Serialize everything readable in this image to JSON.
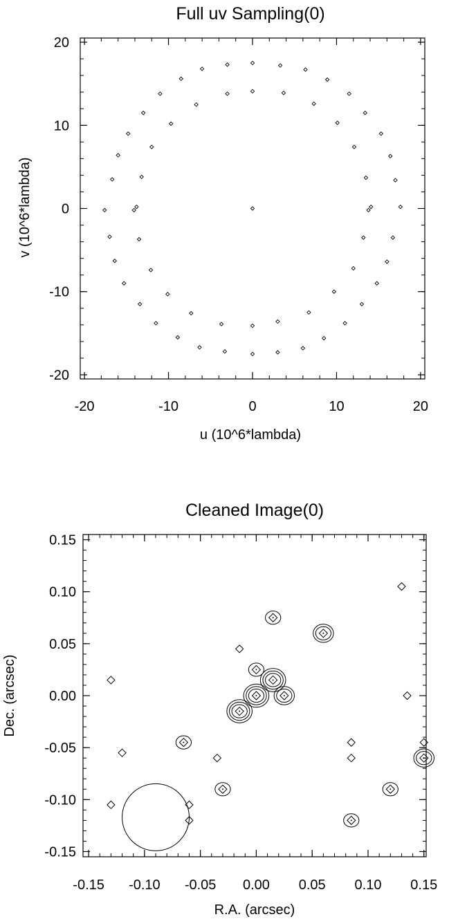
{
  "chart_data": [
    {
      "type": "scatter",
      "title": "Full uv Sampling(0)",
      "xlabel": "u (10^6*lambda)",
      "ylabel": "v (10^6*lambda)",
      "xlim": [
        -20.5,
        20.5
      ],
      "ylim": [
        -20.5,
        20.5
      ],
      "xticks": [
        -20,
        -10,
        0,
        10,
        20
      ],
      "yticks": [
        -20,
        -10,
        0,
        10,
        20
      ],
      "xtick_labels": [
        "-20",
        "-10",
        "0",
        "10",
        "20"
      ],
      "ytick_labels": [
        "-20",
        "-10",
        "0",
        "10",
        "20"
      ],
      "marker": "diamond",
      "grid": false,
      "points": [
        [
          0,
          0
        ],
        [
          0,
          17.5
        ],
        [
          3.3,
          17.2
        ],
        [
          6.3,
          16.7
        ],
        [
          8.9,
          15.5
        ],
        [
          11.5,
          13.8
        ],
        [
          13.4,
          11.5
        ],
        [
          15.3,
          9.0
        ],
        [
          16.4,
          6.3
        ],
        [
          17.0,
          3.4
        ],
        [
          17.6,
          0.2
        ],
        [
          0,
          -17.5
        ],
        [
          -3.3,
          -17.2
        ],
        [
          -6.3,
          -16.7
        ],
        [
          -8.9,
          -15.5
        ],
        [
          -11.5,
          -13.8
        ],
        [
          -13.4,
          -11.5
        ],
        [
          -15.3,
          -9.0
        ],
        [
          -16.4,
          -6.3
        ],
        [
          -17.0,
          -3.4
        ],
        [
          -17.6,
          -0.2
        ],
        [
          0,
          14.1
        ],
        [
          3.7,
          13.9
        ],
        [
          7.3,
          12.6
        ],
        [
          10.1,
          10.3
        ],
        [
          12.1,
          7.4
        ],
        [
          13.5,
          3.7
        ],
        [
          14.1,
          0.2
        ],
        [
          0,
          -14.1
        ],
        [
          -3.7,
          -13.9
        ],
        [
          -7.3,
          -12.6
        ],
        [
          -10.1,
          -10.3
        ],
        [
          -12.1,
          -7.4
        ],
        [
          -13.5,
          -3.7
        ],
        [
          -14.1,
          -0.2
        ],
        [
          -3.0,
          17.3
        ],
        [
          -6.0,
          16.8
        ],
        [
          -8.5,
          15.6
        ],
        [
          -11.0,
          13.8
        ],
        [
          -13.0,
          11.5
        ],
        [
          -14.8,
          9.0
        ],
        [
          -16.0,
          6.4
        ],
        [
          -16.7,
          3.5
        ],
        [
          3.0,
          -17.3
        ],
        [
          6.0,
          -16.8
        ],
        [
          8.5,
          -15.6
        ],
        [
          11.0,
          -13.8
        ],
        [
          13.0,
          -11.5
        ],
        [
          14.8,
          -9.0
        ],
        [
          16.0,
          -6.4
        ],
        [
          16.7,
          -3.5
        ],
        [
          -3.0,
          13.8
        ],
        [
          -6.7,
          12.5
        ],
        [
          -9.7,
          10.2
        ],
        [
          -12.0,
          7.4
        ],
        [
          -13.2,
          3.8
        ],
        [
          -13.8,
          0.2
        ],
        [
          3.0,
          -13.6
        ],
        [
          6.7,
          -12.5
        ],
        [
          9.7,
          -10.0
        ],
        [
          12.0,
          -7.2
        ],
        [
          13.2,
          -3.5
        ],
        [
          13.8,
          -0.2
        ]
      ]
    },
    {
      "type": "contour",
      "title": "Cleaned Image(0)",
      "xlabel": "R.A. (arcsec)",
      "ylabel": "Dec. (arcsec)",
      "xlim": [
        -0.155,
        0.152
      ],
      "ylim": [
        -0.155,
        0.155
      ],
      "xticks": [
        -0.15,
        -0.1,
        -0.05,
        0.0,
        0.05,
        0.1,
        0.15
      ],
      "yticks": [
        -0.15,
        -0.1,
        -0.05,
        0.0,
        0.05,
        0.1,
        0.15
      ],
      "xtick_labels": [
        "-0.15",
        "-0.10",
        "-0.05",
        "0.00",
        "0.05",
        "0.10",
        "0.15"
      ],
      "ytick_labels": [
        "-0.15",
        "-0.10",
        "-0.05",
        "0.00",
        "0.05",
        "0.10",
        "0.15"
      ],
      "grid": false,
      "beam": {
        "x": -0.09,
        "y": -0.117,
        "radius": 0.03
      },
      "sources": [
        {
          "x": 0.13,
          "y": 0.105,
          "levels": 1
        },
        {
          "x": 0.015,
          "y": 0.075,
          "levels": 2
        },
        {
          "x": 0.06,
          "y": 0.06,
          "levels": 3
        },
        {
          "x": -0.015,
          "y": 0.045,
          "levels": 1
        },
        {
          "x": 0.0,
          "y": 0.025,
          "levels": 2
        },
        {
          "x": 0.015,
          "y": 0.015,
          "levels": 4
        },
        {
          "x": 0.025,
          "y": 0.0,
          "levels": 3
        },
        {
          "x": 0.0,
          "y": 0.0,
          "levels": 4
        },
        {
          "x": -0.015,
          "y": -0.015,
          "levels": 4
        },
        {
          "x": -0.13,
          "y": 0.015,
          "levels": 1
        },
        {
          "x": 0.135,
          "y": 0.0,
          "levels": 1
        },
        {
          "x": -0.12,
          "y": -0.055,
          "levels": 1
        },
        {
          "x": -0.065,
          "y": -0.045,
          "levels": 2
        },
        {
          "x": -0.035,
          "y": -0.06,
          "levels": 1
        },
        {
          "x": 0.085,
          "y": -0.045,
          "levels": 1
        },
        {
          "x": 0.085,
          "y": -0.06,
          "levels": 1
        },
        {
          "x": 0.15,
          "y": -0.045,
          "levels": 1
        },
        {
          "x": 0.15,
          "y": -0.06,
          "levels": 3
        },
        {
          "x": -0.03,
          "y": -0.09,
          "levels": 2
        },
        {
          "x": 0.12,
          "y": -0.09,
          "levels": 2
        },
        {
          "x": -0.13,
          "y": -0.105,
          "levels": 1
        },
        {
          "x": -0.06,
          "y": -0.105,
          "levels": 1
        },
        {
          "x": -0.06,
          "y": -0.12,
          "levels": 1
        },
        {
          "x": 0.085,
          "y": -0.12,
          "levels": 2
        }
      ]
    }
  ]
}
